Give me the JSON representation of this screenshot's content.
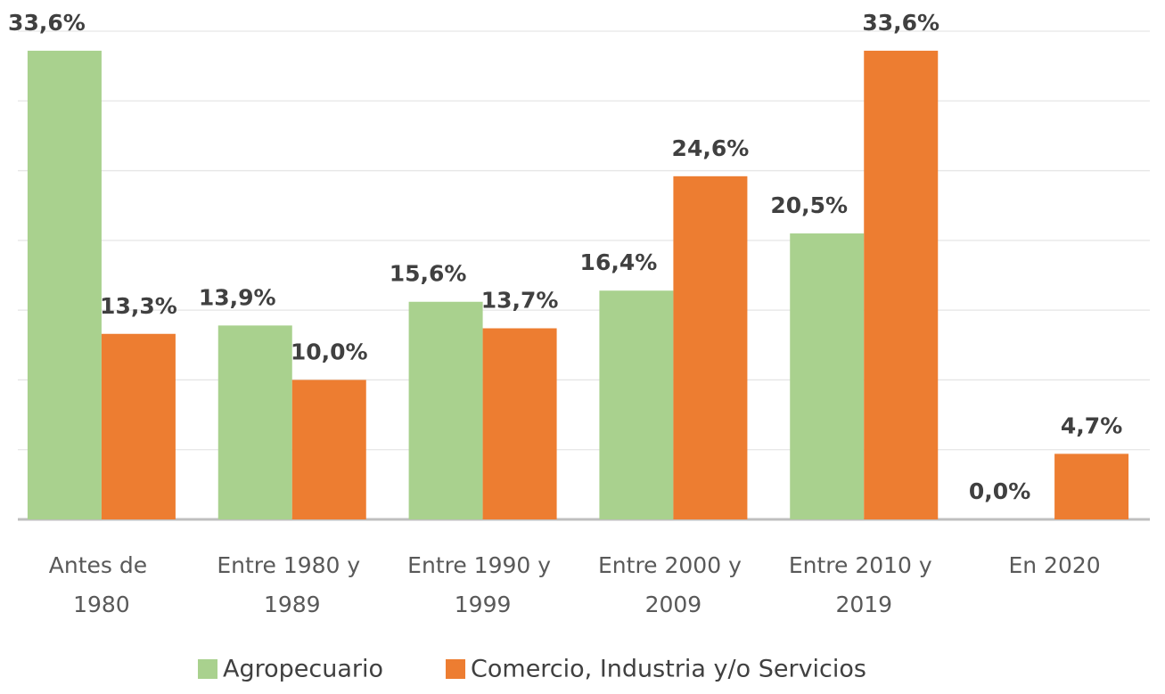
{
  "chart_data": {
    "type": "bar",
    "categories": [
      "Antes de 1980",
      "Entre 1980 y 1989",
      "Entre 1990 y 1999",
      "Entre 2000 y 2009",
      "Entre 2010 y 2019",
      "En 2020"
    ],
    "series": [
      {
        "name": "Agropecuario",
        "color": "#a9d18e",
        "values": [
          33.6,
          13.9,
          15.6,
          16.4,
          20.5,
          0.0
        ],
        "value_labels": [
          "33,6%",
          "13,9%",
          "15,6%",
          "16,4%",
          "20,5%",
          "0,0%"
        ]
      },
      {
        "name": "Comercio, Industria y/o Servicios",
        "color": "#ed7d31",
        "values": [
          13.3,
          10.0,
          13.7,
          24.6,
          33.6,
          4.7
        ],
        "value_labels": [
          "13,3%",
          "10,0%",
          "13,7%",
          "24,6%",
          "33,6%",
          "4,7%"
        ]
      }
    ],
    "ylim": [
      0,
      35
    ],
    "yticks": [
      0,
      5,
      10,
      15,
      20,
      25,
      30,
      35
    ],
    "grid": true,
    "legend": "bottom"
  }
}
